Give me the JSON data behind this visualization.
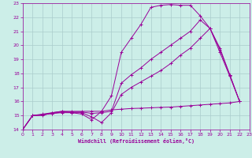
{
  "bg_color": "#cceee8",
  "grid_color": "#aacccc",
  "line_color": "#990099",
  "xlim": [
    0,
    23
  ],
  "ylim": [
    14,
    23
  ],
  "yticks": [
    14,
    15,
    16,
    17,
    18,
    19,
    20,
    21,
    22,
    23
  ],
  "xticks": [
    0,
    1,
    2,
    3,
    4,
    5,
    6,
    7,
    8,
    9,
    10,
    11,
    12,
    13,
    14,
    15,
    16,
    17,
    18,
    19,
    20,
    21,
    22,
    23
  ],
  "xlabel": "Windchill (Refroidissement éolien,°C)",
  "line1_x": [
    0,
    1,
    2,
    3,
    4,
    5,
    6,
    7,
    8,
    9,
    10,
    11,
    12,
    13,
    14,
    15,
    16,
    17,
    18,
    19,
    20,
    21,
    22
  ],
  "line1_y": [
    14.0,
    15.0,
    15.0,
    15.2,
    15.3,
    15.2,
    15.1,
    14.7,
    15.3,
    16.4,
    19.5,
    20.5,
    21.5,
    22.7,
    22.85,
    22.9,
    22.85,
    22.85,
    22.1,
    21.2,
    19.8,
    17.9,
    16.0
  ],
  "line2_x": [
    0,
    1,
    2,
    3,
    4,
    5,
    6,
    7,
    8,
    9,
    10,
    11,
    12,
    13,
    14,
    15,
    16,
    17,
    18,
    19,
    20,
    21,
    22
  ],
  "line2_y": [
    14.0,
    15.0,
    15.05,
    15.15,
    15.25,
    15.25,
    15.25,
    15.15,
    15.2,
    15.3,
    17.3,
    17.9,
    18.4,
    19.0,
    19.5,
    20.0,
    20.5,
    21.0,
    21.8,
    21.2,
    19.7,
    17.9,
    16.0
  ],
  "line3_x": [
    0,
    1,
    2,
    3,
    4,
    5,
    6,
    7,
    8,
    9,
    10,
    11,
    12,
    13,
    14,
    15,
    16,
    17,
    18,
    19,
    20,
    21,
    22
  ],
  "line3_y": [
    14.0,
    15.0,
    15.05,
    15.15,
    15.2,
    15.2,
    15.2,
    14.9,
    14.5,
    15.2,
    16.5,
    17.0,
    17.4,
    17.8,
    18.2,
    18.7,
    19.3,
    19.8,
    20.5,
    21.2,
    19.5,
    17.8,
    16.0
  ],
  "line4_x": [
    0,
    1,
    2,
    3,
    4,
    5,
    6,
    7,
    8,
    9,
    10,
    11,
    12,
    13,
    14,
    15,
    16,
    17,
    18,
    19,
    20,
    21,
    22
  ],
  "line4_y": [
    14.0,
    15.0,
    15.1,
    15.2,
    15.3,
    15.3,
    15.3,
    15.3,
    15.3,
    15.4,
    15.45,
    15.5,
    15.52,
    15.55,
    15.58,
    15.6,
    15.65,
    15.7,
    15.75,
    15.8,
    15.85,
    15.9,
    16.0
  ]
}
